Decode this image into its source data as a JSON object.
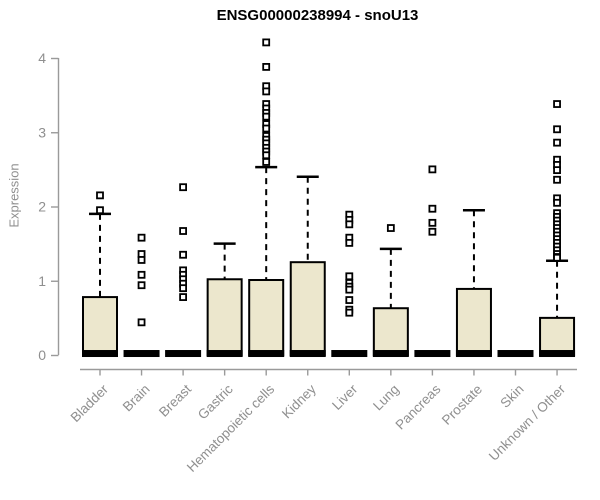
{
  "title": "ENSG00000238994 - snoU13",
  "ylabel": "Expression",
  "chart_data": {
    "type": "boxplot",
    "title": "ENSG00000238994 - snoU13",
    "xlabel": "",
    "ylabel": "Expression",
    "ylim": [
      0,
      4.3
    ],
    "yticks": [
      0,
      1,
      2,
      3,
      4
    ],
    "grid": false,
    "legend": "none",
    "box_fill": "#ECE7CD",
    "box_stroke": "#000000",
    "axis_color": "#9a9a9a",
    "label_color": "#8f8f8f",
    "categories": [
      "Bladder",
      "Brain",
      "Breast",
      "Gastric",
      "Hematopoietic cells",
      "Kidney",
      "Liver",
      "Lung",
      "Pancreas",
      "Prostate",
      "Skin",
      "Unknown / Other"
    ],
    "series": [
      {
        "category": "Bladder",
        "q1": 0,
        "median": 0.02,
        "q3": 0.78,
        "whisker_low": 0,
        "whisker_high": 1.9,
        "outliers": [
          2.15,
          1.95
        ]
      },
      {
        "category": "Brain",
        "q1": 0,
        "median": 0.02,
        "q3": 0.03,
        "whisker_low": 0,
        "whisker_high": 0.03,
        "outliers": [
          1.58,
          1.36,
          1.28,
          1.08,
          0.94,
          0.44
        ]
      },
      {
        "category": "Breast",
        "q1": 0,
        "median": 0.02,
        "q3": 0.03,
        "whisker_low": 0,
        "whisker_high": 0.03,
        "outliers": [
          2.26,
          1.67,
          1.35,
          1.14,
          1.08,
          1.02,
          0.96,
          0.9,
          0.78
        ]
      },
      {
        "category": "Gastric",
        "q1": 0,
        "median": 0.02,
        "q3": 1.02,
        "whisker_low": 0,
        "whisker_high": 1.5,
        "outliers": []
      },
      {
        "category": "Hematopoietic cells",
        "q1": 0,
        "median": 0.02,
        "q3": 1.01,
        "whisker_low": 0,
        "whisker_high": 2.53,
        "outliers": [
          4.21,
          3.88,
          3.62,
          3.55,
          3.38,
          3.32,
          3.26,
          3.21,
          3.11,
          3.05,
          2.95,
          2.9,
          2.85,
          2.79,
          2.74,
          2.69,
          2.6
        ]
      },
      {
        "category": "Kidney",
        "q1": 0,
        "median": 0.02,
        "q3": 1.25,
        "whisker_low": 0,
        "whisker_high": 2.4,
        "outliers": []
      },
      {
        "category": "Liver",
        "q1": 0,
        "median": 0.02,
        "q3": 0.03,
        "whisker_low": 0,
        "whisker_high": 0.03,
        "outliers": [
          1.89,
          1.82,
          1.76,
          1.58,
          1.51,
          1.06,
          0.97,
          0.92,
          0.88,
          0.74,
          0.61,
          0.57
        ]
      },
      {
        "category": "Lung",
        "q1": 0,
        "median": 0.02,
        "q3": 0.63,
        "whisker_low": 0,
        "whisker_high": 1.43,
        "outliers": [
          1.71
        ]
      },
      {
        "category": "Pancreas",
        "q1": 0,
        "median": 0.02,
        "q3": 0.03,
        "whisker_low": 0,
        "whisker_high": 0.03,
        "outliers": [
          2.5,
          1.97,
          1.78,
          1.66
        ]
      },
      {
        "category": "Prostate",
        "q1": 0,
        "median": 0.02,
        "q3": 0.89,
        "whisker_low": 0,
        "whisker_high": 1.95,
        "outliers": []
      },
      {
        "category": "Skin",
        "q1": 0,
        "median": 0.02,
        "q3": 0.03,
        "whisker_low": 0,
        "whisker_high": 0.03,
        "outliers": []
      },
      {
        "category": "Unknown / Other",
        "q1": 0,
        "median": 0.02,
        "q3": 0.5,
        "whisker_low": 0,
        "whisker_high": 1.27,
        "outliers": [
          3.38,
          3.04,
          2.86,
          2.63,
          2.56,
          2.49,
          2.36,
          2.11,
          2.05,
          1.91,
          1.86,
          1.81,
          1.76,
          1.71,
          1.66,
          1.61,
          1.56,
          1.51,
          1.46,
          1.41,
          1.36,
          1.32,
          1.31
        ]
      }
    ]
  }
}
